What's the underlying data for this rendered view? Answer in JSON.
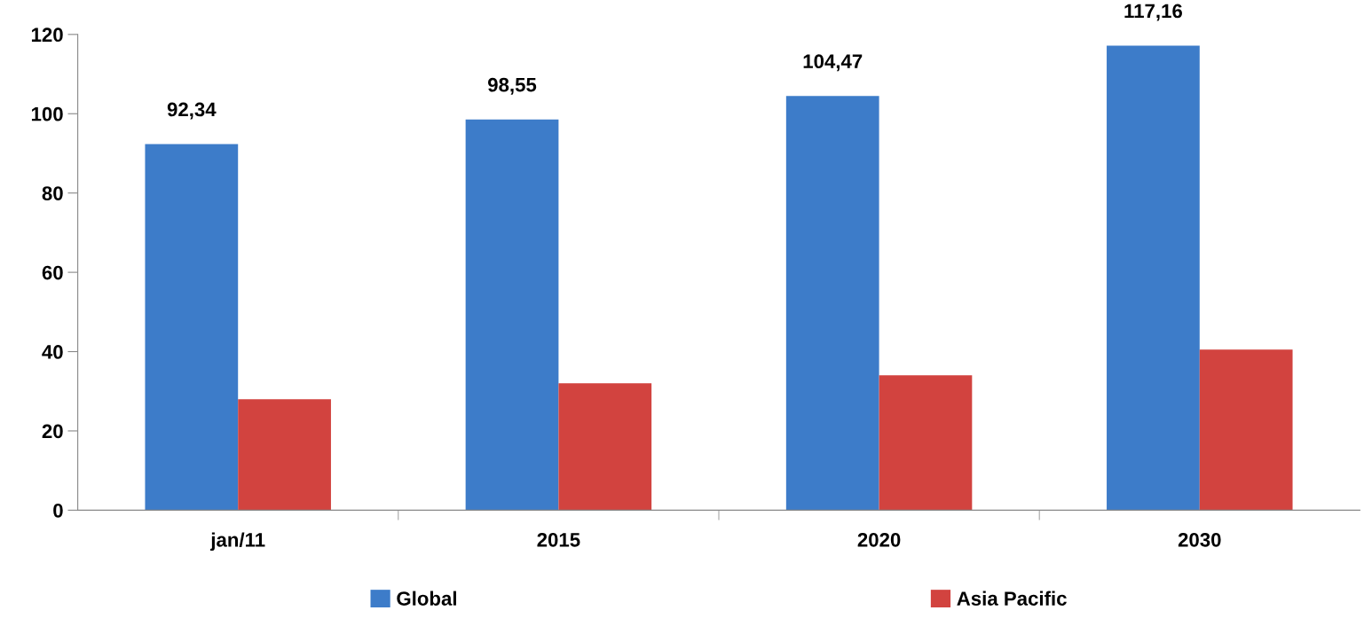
{
  "chart_data": {
    "type": "bar",
    "categories": [
      "jan/11",
      "2015",
      "2020",
      "2030"
    ],
    "series": [
      {
        "name": "Global",
        "color": "#3d7cc9",
        "values": [
          92.34,
          98.55,
          104.47,
          117.16
        ],
        "value_labels": [
          "92,34",
          "98,55",
          "104,47",
          "117,16"
        ]
      },
      {
        "name": "Asia Pacific",
        "color": "#d2433f",
        "values": [
          28,
          32,
          34,
          40.5
        ]
      }
    ],
    "ylim": [
      0,
      120
    ],
    "yticks": [
      0,
      20,
      40,
      60,
      80,
      100,
      120
    ],
    "grid": false,
    "legend": "bottom"
  }
}
